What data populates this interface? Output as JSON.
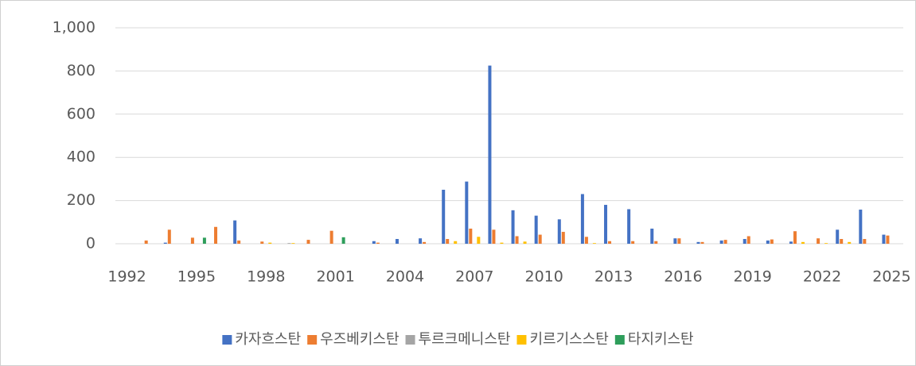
{
  "chart_data": {
    "type": "bar",
    "categories": [
      "1992",
      null,
      null,
      "1995",
      null,
      null,
      "1998",
      null,
      null,
      "2001",
      null,
      null,
      "2004",
      null,
      null,
      "2007",
      null,
      null,
      "2010",
      null,
      null,
      "2013",
      null,
      null,
      "2016",
      null,
      null,
      "2019",
      null,
      null,
      "2022",
      null,
      null,
      "2025"
    ],
    "series": [
      {
        "name": "카자흐스탄",
        "color": "#4472c4",
        "values": [
          0,
          0,
          5,
          0,
          0,
          108,
          0,
          0,
          0,
          0,
          0,
          12,
          22,
          25,
          250,
          288,
          825,
          155,
          130,
          113,
          230,
          180,
          160,
          70,
          25,
          8,
          15,
          22,
          15,
          10,
          0,
          65,
          158,
          42
        ]
      },
      {
        "name": "우즈베키스탄",
        "color": "#ed7d31",
        "values": [
          0,
          15,
          65,
          28,
          78,
          15,
          10,
          0,
          18,
          60,
          0,
          5,
          0,
          8,
          22,
          70,
          65,
          35,
          42,
          55,
          32,
          12,
          12,
          12,
          25,
          8,
          18,
          35,
          20,
          58,
          25,
          22,
          22,
          38
        ]
      },
      {
        "name": "투르크메니스탄",
        "color": "#a5a5a5",
        "values": [
          0,
          0,
          0,
          0,
          0,
          0,
          0,
          3,
          0,
          0,
          0,
          0,
          0,
          0,
          0,
          0,
          0,
          0,
          0,
          0,
          0,
          0,
          0,
          0,
          0,
          0,
          0,
          0,
          0,
          0,
          0,
          0,
          0,
          0
        ]
      },
      {
        "name": "키르기스스탄",
        "color": "#ffc000",
        "values": [
          0,
          0,
          0,
          0,
          0,
          0,
          5,
          3,
          0,
          0,
          0,
          0,
          0,
          0,
          12,
          32,
          5,
          10,
          0,
          0,
          3,
          0,
          0,
          0,
          0,
          0,
          0,
          0,
          0,
          8,
          3,
          8,
          0,
          0
        ]
      },
      {
        "name": "타지키스탄",
        "color": "#2e9e5b",
        "values": [
          0,
          0,
          0,
          28,
          0,
          0,
          0,
          0,
          0,
          30,
          0,
          0,
          0,
          0,
          0,
          0,
          0,
          0,
          0,
          0,
          0,
          0,
          0,
          0,
          0,
          0,
          0,
          0,
          0,
          0,
          0,
          0,
          0,
          0
        ]
      }
    ],
    "ylim": [
      0,
      1000
    ],
    "yticks": [
      0,
      200,
      400,
      600,
      800,
      {
        "value": 1000,
        "label": "1,000"
      }
    ],
    "grid": true,
    "legend": "bottom"
  }
}
